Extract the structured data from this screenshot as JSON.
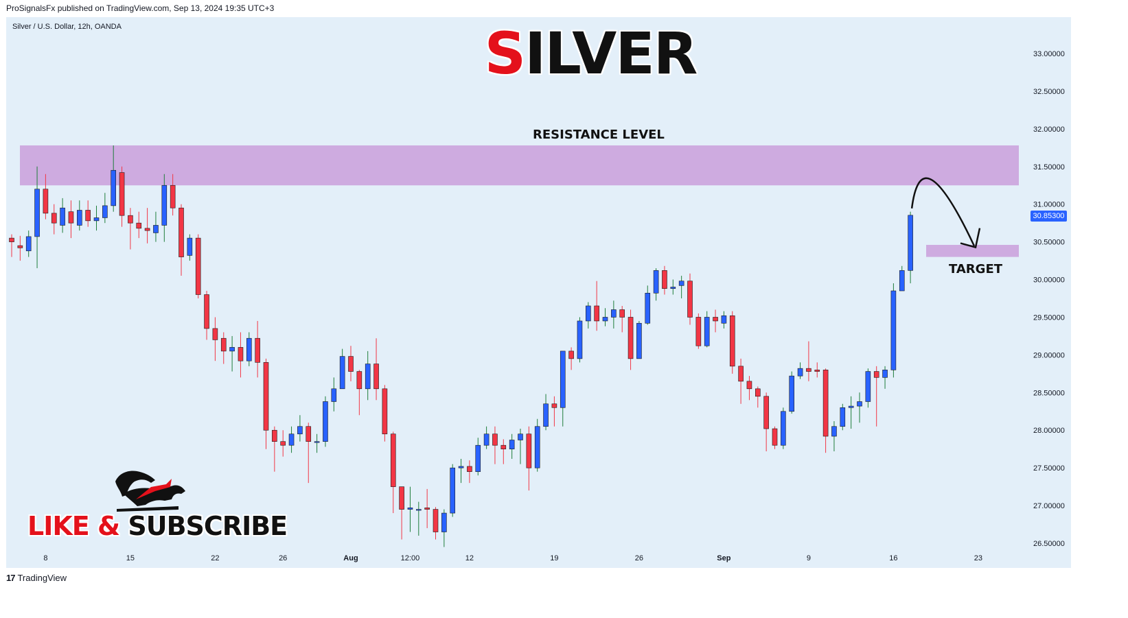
{
  "header": {
    "published": "ProSignalsFx published on TradingView.com, Sep 13, 2024 19:35 UTC+3"
  },
  "symbol": {
    "description": "Silver / U.S. Dollar, 12h, OANDA"
  },
  "overlay": {
    "title_first": "S",
    "title_rest": "ILVER",
    "resistance_label": "RESISTANCE LEVEL",
    "target_label": "TARGET",
    "cta_like": "LIKE & ",
    "cta_subscribe": "SUBSCRIBE",
    "last_price": "30.85300"
  },
  "footer": {
    "brand": "TradingView",
    "mark": "17"
  },
  "colors": {
    "background": "#e3eff9",
    "up_candle": "#2962ff",
    "down_candle": "#f23645",
    "zone": "#ceabe0",
    "accent_red": "#e4111b"
  },
  "chart_data": {
    "type": "candlestick",
    "symbol": "Silver / U.S. Dollar, 12h, OANDA",
    "ylim": [
      26.4,
      33.3
    ],
    "y_ticks": [
      "33.00000",
      "32.50000",
      "32.00000",
      "31.50000",
      "31.00000",
      "30.50000",
      "30.00000",
      "29.50000",
      "29.00000",
      "28.50000",
      "28.00000",
      "27.50000",
      "27.00000",
      "26.50000"
    ],
    "x_ticks": [
      {
        "label": "8",
        "i": 4
      },
      {
        "label": "15",
        "i": 14
      },
      {
        "label": "22",
        "i": 24
      },
      {
        "label": "26",
        "i": 32
      },
      {
        "label": "Aug",
        "i": 40
      },
      {
        "label": "12:00",
        "i": 47
      },
      {
        "label": "12",
        "i": 54
      },
      {
        "label": "19",
        "i": 64
      },
      {
        "label": "26",
        "i": 74
      },
      {
        "label": "Sep",
        "i": 84
      },
      {
        "label": "9",
        "i": 94
      },
      {
        "label": "16",
        "i": 104
      },
      {
        "label": "23",
        "i": 114
      }
    ],
    "resistance_zone": [
      31.25,
      31.78
    ],
    "target_zone": [
      30.3,
      30.46
    ],
    "last_price": 30.853,
    "candles": [
      [
        30.55,
        30.5,
        30.6,
        30.3
      ],
      [
        30.45,
        30.42,
        30.58,
        30.25
      ],
      [
        30.38,
        30.57,
        30.65,
        30.3
      ],
      [
        30.57,
        31.2,
        31.5,
        30.15
      ],
      [
        31.2,
        30.88,
        31.4,
        30.8
      ],
      [
        30.88,
        30.75,
        31.0,
        30.6
      ],
      [
        30.72,
        30.95,
        31.08,
        30.62
      ],
      [
        30.9,
        30.75,
        31.05,
        30.55
      ],
      [
        30.72,
        30.92,
        31.05,
        30.65
      ],
      [
        30.92,
        30.78,
        31.05,
        30.7
      ],
      [
        30.78,
        30.82,
        30.98,
        30.65
      ],
      [
        30.82,
        30.98,
        31.15,
        30.75
      ],
      [
        30.98,
        31.45,
        31.78,
        30.9
      ],
      [
        31.42,
        30.85,
        31.5,
        30.7
      ],
      [
        30.85,
        30.75,
        30.95,
        30.4
      ],
      [
        30.75,
        30.68,
        30.9,
        30.55
      ],
      [
        30.68,
        30.65,
        30.95,
        30.48
      ],
      [
        30.62,
        30.72,
        30.9,
        30.5
      ],
      [
        30.72,
        31.25,
        31.4,
        30.5
      ],
      [
        31.25,
        30.95,
        31.4,
        30.85
      ],
      [
        30.95,
        30.3,
        31.0,
        30.05
      ],
      [
        30.32,
        30.55,
        30.6,
        30.25
      ],
      [
        30.55,
        29.8,
        30.6,
        29.75
      ],
      [
        29.8,
        29.35,
        29.85,
        29.2
      ],
      [
        29.35,
        29.2,
        29.5,
        28.92
      ],
      [
        29.22,
        29.05,
        29.3,
        28.88
      ],
      [
        29.05,
        29.1,
        29.25,
        28.78
      ],
      [
        29.1,
        28.92,
        29.3,
        28.7
      ],
      [
        28.92,
        29.22,
        29.3,
        28.85
      ],
      [
        29.22,
        28.9,
        29.45,
        28.7
      ],
      [
        28.9,
        28.0,
        28.95,
        27.75
      ],
      [
        28.0,
        27.85,
        28.05,
        27.45
      ],
      [
        27.85,
        27.8,
        28.0,
        27.65
      ],
      [
        27.8,
        27.95,
        28.05,
        27.7
      ],
      [
        27.95,
        28.05,
        28.2,
        27.85
      ],
      [
        28.05,
        27.85,
        28.1,
        27.3
      ],
      [
        27.85,
        27.85,
        27.95,
        27.7
      ],
      [
        27.85,
        28.38,
        28.45,
        27.78
      ],
      [
        28.38,
        28.55,
        28.7,
        28.25
      ],
      [
        28.55,
        28.98,
        29.08,
        28.55
      ],
      [
        28.98,
        28.78,
        29.12,
        28.65
      ],
      [
        28.78,
        28.55,
        28.8,
        28.2
      ],
      [
        28.55,
        28.88,
        29.05,
        28.4
      ],
      [
        28.88,
        28.55,
        29.22,
        28.4
      ],
      [
        28.55,
        27.95,
        28.6,
        27.85
      ],
      [
        27.95,
        27.25,
        27.98,
        26.9
      ],
      [
        27.25,
        26.95,
        27.25,
        26.55
      ],
      [
        26.95,
        26.97,
        27.25,
        26.65
      ],
      [
        26.95,
        26.95,
        27.05,
        26.6
      ],
      [
        26.97,
        26.95,
        27.22,
        26.7
      ],
      [
        26.95,
        26.65,
        26.98,
        26.55
      ],
      [
        26.65,
        26.9,
        26.95,
        26.45
      ],
      [
        26.9,
        27.5,
        27.55,
        26.85
      ],
      [
        27.5,
        27.52,
        27.62,
        27.3
      ],
      [
        27.52,
        27.45,
        27.6,
        27.3
      ],
      [
        27.45,
        27.8,
        27.9,
        27.4
      ],
      [
        27.8,
        27.95,
        28.05,
        27.75
      ],
      [
        27.95,
        27.8,
        28.05,
        27.55
      ],
      [
        27.8,
        27.75,
        27.88,
        27.55
      ],
      [
        27.75,
        27.87,
        27.95,
        27.62
      ],
      [
        27.87,
        27.95,
        28.02,
        27.55
      ],
      [
        27.95,
        27.5,
        28.05,
        27.2
      ],
      [
        27.5,
        28.05,
        28.15,
        27.45
      ],
      [
        28.05,
        28.35,
        28.48,
        28.0
      ],
      [
        28.35,
        28.3,
        28.45,
        28.05
      ],
      [
        28.3,
        29.05,
        29.05,
        28.05
      ],
      [
        29.05,
        28.95,
        29.1,
        28.8
      ],
      [
        28.95,
        29.45,
        29.5,
        28.9
      ],
      [
        29.45,
        29.65,
        29.7,
        29.35
      ],
      [
        29.65,
        29.45,
        29.98,
        29.32
      ],
      [
        29.45,
        29.5,
        29.62,
        29.38
      ],
      [
        29.5,
        29.6,
        29.72,
        29.35
      ],
      [
        29.6,
        29.5,
        29.65,
        29.3
      ],
      [
        29.5,
        28.95,
        29.6,
        28.8
      ],
      [
        28.95,
        29.42,
        29.45,
        28.95
      ],
      [
        29.42,
        29.82,
        29.92,
        29.4
      ],
      [
        29.82,
        30.12,
        30.15,
        29.72
      ],
      [
        30.12,
        29.88,
        30.18,
        29.8
      ],
      [
        29.88,
        29.9,
        30.0,
        29.8
      ],
      [
        29.92,
        29.98,
        30.05,
        29.75
      ],
      [
        29.98,
        29.5,
        30.08,
        29.4
      ],
      [
        29.5,
        29.12,
        29.55,
        29.08
      ],
      [
        29.12,
        29.5,
        29.58,
        29.1
      ],
      [
        29.5,
        29.45,
        29.6,
        29.3
      ],
      [
        29.42,
        29.52,
        29.58,
        29.35
      ],
      [
        29.52,
        28.85,
        29.58,
        28.75
      ],
      [
        28.85,
        28.65,
        28.95,
        28.35
      ],
      [
        28.65,
        28.55,
        28.72,
        28.4
      ],
      [
        28.55,
        28.45,
        28.58,
        28.3
      ],
      [
        28.45,
        28.02,
        28.5,
        27.72
      ],
      [
        28.02,
        27.8,
        28.05,
        27.75
      ],
      [
        27.8,
        28.25,
        28.3,
        27.75
      ],
      [
        28.25,
        28.72,
        28.78,
        28.22
      ],
      [
        28.72,
        28.82,
        28.9,
        28.68
      ],
      [
        28.82,
        28.78,
        29.18,
        28.65
      ],
      [
        28.8,
        28.78,
        28.9,
        28.7
      ],
      [
        28.8,
        27.92,
        28.82,
        27.7
      ],
      [
        27.92,
        28.05,
        28.12,
        27.72
      ],
      [
        28.05,
        28.3,
        28.35,
        28.0
      ],
      [
        28.3,
        28.32,
        28.45,
        28.02
      ],
      [
        28.32,
        28.38,
        28.5,
        28.1
      ],
      [
        28.38,
        28.78,
        28.82,
        28.3
      ],
      [
        28.78,
        28.7,
        28.85,
        28.05
      ],
      [
        28.7,
        28.8,
        28.85,
        28.55
      ],
      [
        28.8,
        29.85,
        29.95,
        28.7
      ],
      [
        29.85,
        30.12,
        30.18,
        29.85
      ],
      [
        30.12,
        30.853,
        30.9,
        29.95
      ]
    ],
    "annotations": [
      {
        "type": "zone",
        "label": "RESISTANCE LEVEL",
        "y": [
          31.25,
          31.78
        ]
      },
      {
        "type": "zone",
        "label": "TARGET",
        "y": [
          30.3,
          30.46
        ]
      },
      {
        "type": "arrow",
        "from": 30.853,
        "peak": 31.25,
        "to": 30.4
      }
    ]
  }
}
